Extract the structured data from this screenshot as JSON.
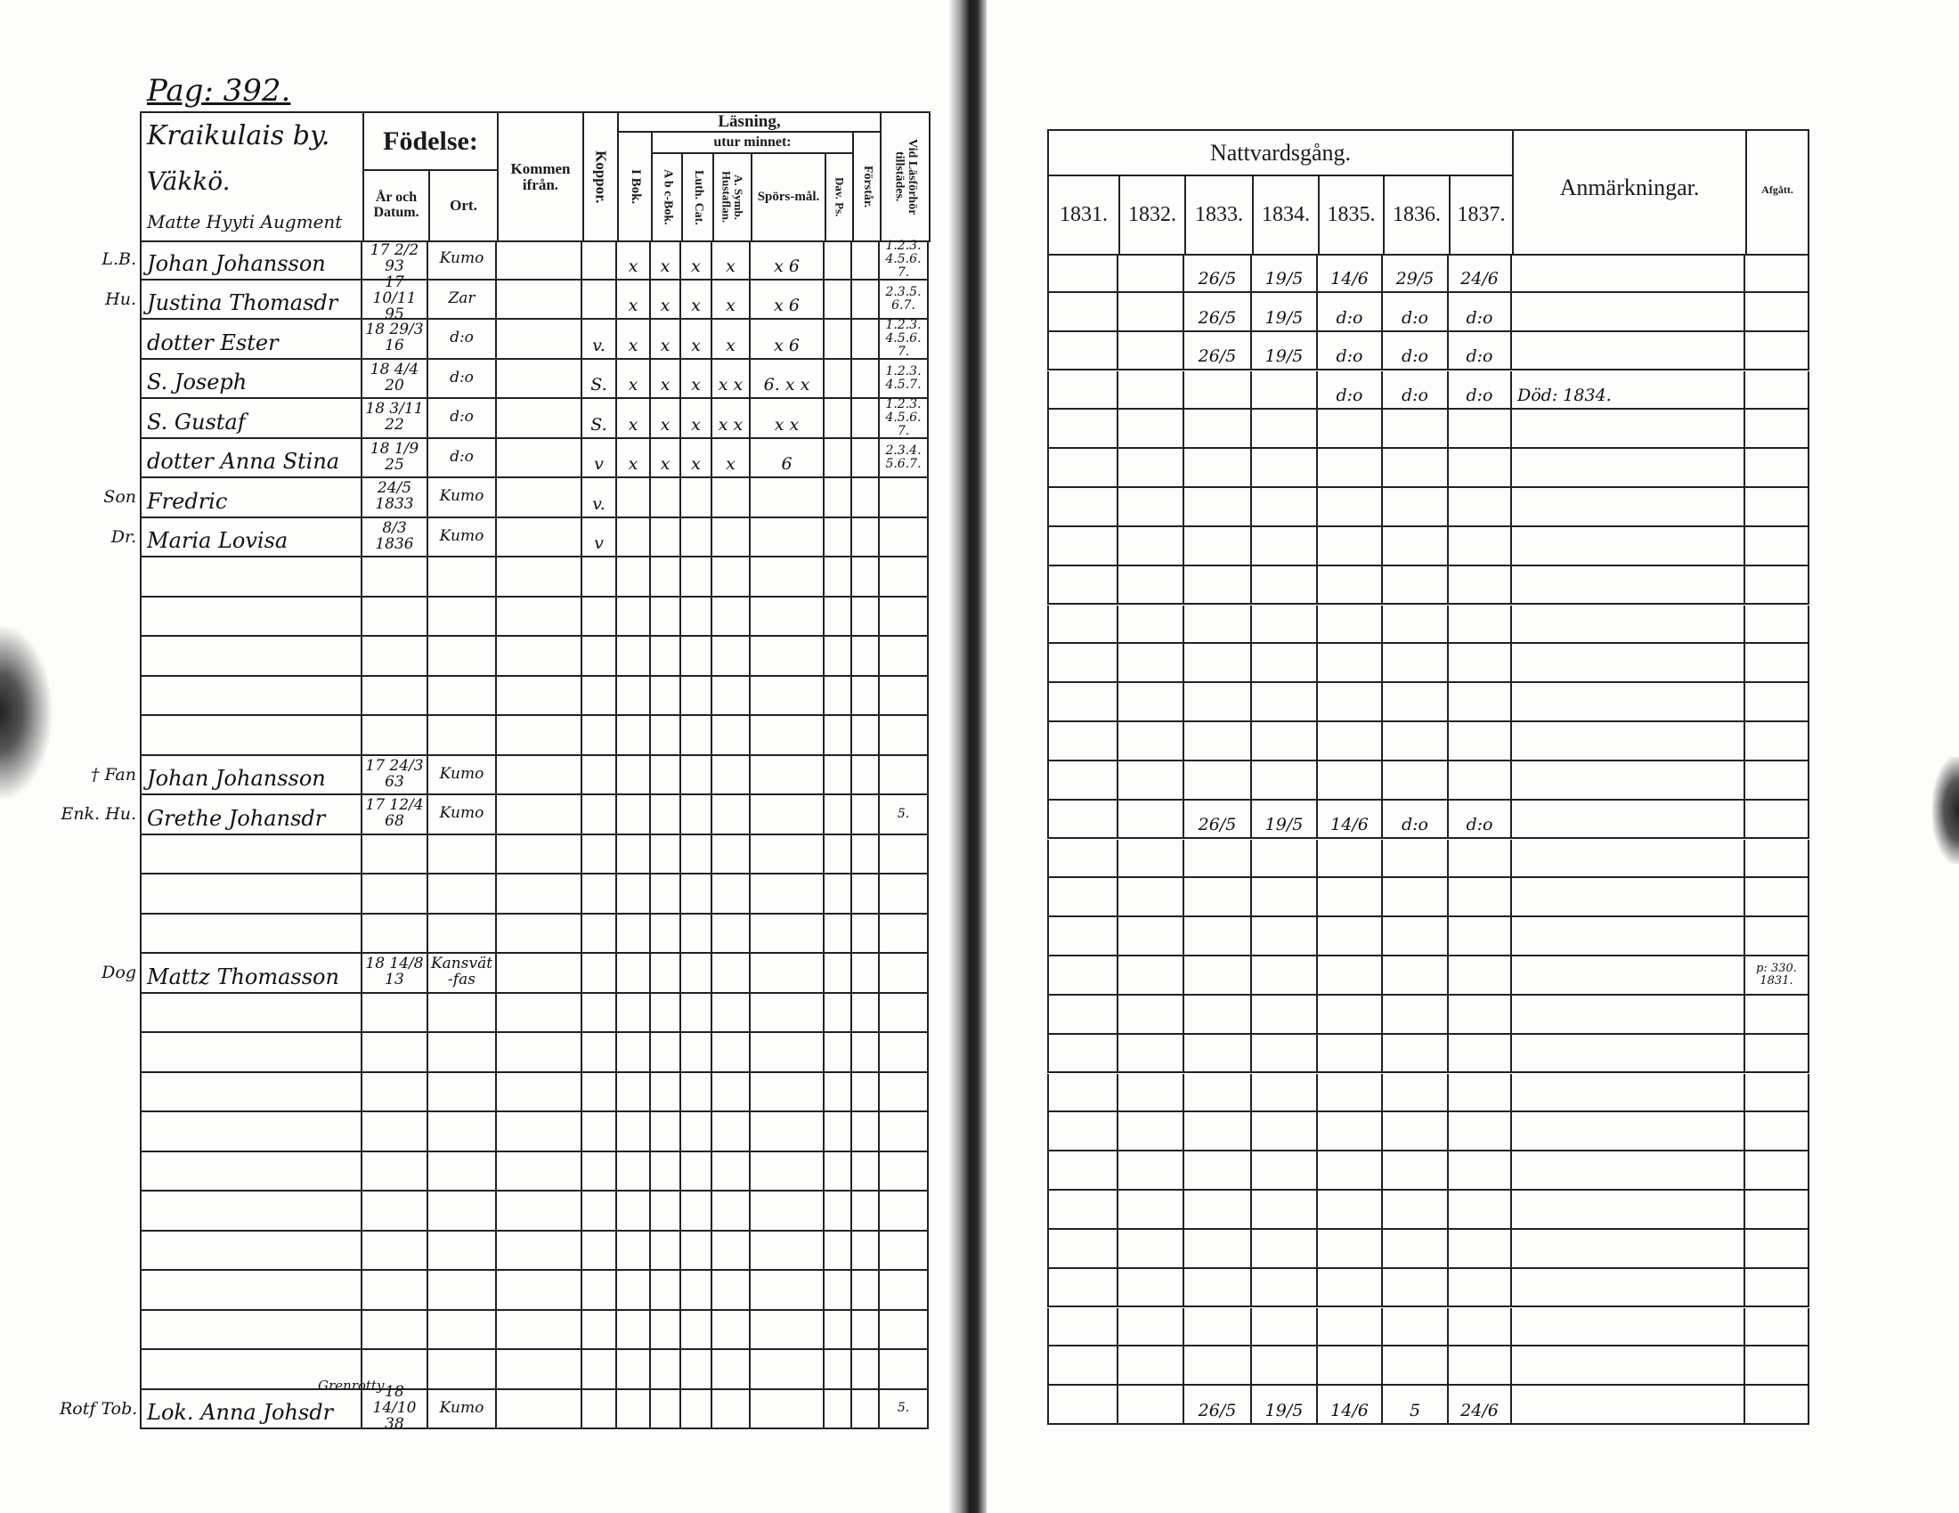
{
  "left_page": {
    "page_number": "Pag: 392.",
    "household_heading": [
      "Kraikulais by.",
      "Väkkö.",
      "Matte Hyyti Augment"
    ],
    "headers": {
      "fodelse": "Födelse:",
      "ar_och_datum": "År och Datum.",
      "ort": "Ort.",
      "kommen_ifran": "Kommen ifrån.",
      "koppor": "Koppor.",
      "lasning": "Läsning,",
      "utur_minnet": "utur minnet:",
      "i_bok": "I Bok.",
      "abc_bok": "A b c-Bok.",
      "luth_cat": "Luth. Cat.",
      "symb": "A. Symb. Hustaflan.",
      "sporsmal": "Spörs-mål.",
      "dav_ps": "Dav. Ps.",
      "forstar": "Förstår.",
      "vid_lasforhor": "Vid Läsförhör tillstädes."
    },
    "rows": [
      {
        "row": 0,
        "prefix": "L.B.",
        "name": "Johan Johansson",
        "date": "17 2/2 93",
        "ort": "Kumo",
        "koppor": "",
        "i_bok": "x",
        "abc": "x",
        "luth": "x",
        "symb": "x",
        "spors": "x 6",
        "vid": "1.2.3.4.5.6.7."
      },
      {
        "row": 1,
        "prefix": "Hu.",
        "name": "Justina Thomasdr",
        "date": "17 10/11 95",
        "ort": "Zar",
        "koppor": "",
        "i_bok": "x",
        "abc": "x",
        "luth": "x",
        "symb": "x",
        "spors": "x 6",
        "vid": "2.3.5.6.7."
      },
      {
        "row": 2,
        "prefix": "",
        "name": "dotter Ester",
        "date": "18 29/3 16",
        "ort": "d:o",
        "koppor": "v.",
        "i_bok": "x",
        "abc": "x",
        "luth": "x",
        "symb": "x",
        "spors": "x 6",
        "vid": "1.2.3.4.5.6.7."
      },
      {
        "row": 3,
        "prefix": "",
        "name": "S. Joseph",
        "date": "18 4/4 20",
        "ort": "d:o",
        "koppor": "S.",
        "i_bok": "x",
        "abc": "x",
        "luth": "x",
        "symb": "x x",
        "spors": "6. x x",
        "vid": "1.2.3.4.5.7."
      },
      {
        "row": 4,
        "prefix": "",
        "name": "S. Gustaf",
        "date": "18 3/11 22",
        "ort": "d:o",
        "koppor": "S.",
        "i_bok": "x",
        "abc": "x",
        "luth": "x",
        "symb": "x x",
        "spors": "x x",
        "vid": "1.2.3.4.5.6.7."
      },
      {
        "row": 5,
        "prefix": "",
        "name": "dotter Anna Stina",
        "date": "18 1/9 25",
        "ort": "d:o",
        "koppor": "v",
        "i_bok": "x",
        "abc": "x",
        "luth": "x",
        "symb": "x",
        "spors": "6",
        "vid": "2.3.4.5.6.7."
      },
      {
        "row": 6,
        "prefix": "Son",
        "name": "Fredric",
        "date": "24/5 1833",
        "ort": "Kumo",
        "koppor": "v.",
        "i_bok": "",
        "abc": "",
        "luth": "",
        "symb": "",
        "spors": "",
        "vid": ""
      },
      {
        "row": 7,
        "prefix": "Dr.",
        "name": "Maria Lovisa",
        "date": "8/3 1836",
        "ort": "Kumo",
        "koppor": "v",
        "i_bok": "",
        "abc": "",
        "luth": "",
        "symb": "",
        "spors": "",
        "vid": ""
      },
      {
        "row": 13,
        "prefix": "† Fan",
        "name": "Johan Johansson",
        "date": "17 24/3 63",
        "ort": "Kumo",
        "koppor": "",
        "i_bok": "",
        "abc": "",
        "luth": "",
        "symb": "",
        "spors": "",
        "vid": ""
      },
      {
        "row": 14,
        "prefix": "Enk. Hu.",
        "name": "Grethe Johansdr",
        "date": "17 12/4 68",
        "ort": "Kumo",
        "koppor": "",
        "i_bok": "",
        "abc": "",
        "luth": "",
        "symb": "",
        "spors": "",
        "vid": "5."
      },
      {
        "row": 18,
        "prefix": "Dog",
        "name": "Mattz Thomasson",
        "date": "18 14/8 13",
        "ort": "Kansvät-fas",
        "koppor": "",
        "i_bok": "",
        "abc": "",
        "luth": "",
        "symb": "",
        "spors": "",
        "vid": ""
      },
      {
        "row": 29,
        "prefix": "Rotf Tob.",
        "name": "Lok. Anna Johsdr",
        "above": "Grenrotty",
        "date": "18 14/10 38",
        "ort": "Kumo",
        "koppor": "",
        "i_bok": "",
        "abc": "",
        "luth": "",
        "symb": "",
        "spors": "",
        "vid": "5."
      }
    ]
  },
  "right_page": {
    "headers": {
      "nattvardsgang": "Nattvardsgång.",
      "years": [
        "1831.",
        "1832.",
        "1833.",
        "1834.",
        "1835.",
        "1836.",
        "1837."
      ],
      "anmarkningar": "Anmärkningar.",
      "afgatt": "Afgått."
    },
    "rows": [
      {
        "row": 0,
        "years": [
          "",
          "",
          "26/5",
          "19/5",
          "14/6",
          "29/5",
          "24/6"
        ],
        "anm": "",
        "afgatt": ""
      },
      {
        "row": 1,
        "years": [
          "",
          "",
          "26/5",
          "19/5",
          "d:o",
          "d:o",
          "d:o"
        ],
        "anm": "",
        "afgatt": ""
      },
      {
        "row": 2,
        "years": [
          "",
          "",
          "26/5",
          "19/5",
          "d:o",
          "d:o",
          "d:o"
        ],
        "anm": "",
        "afgatt": ""
      },
      {
        "row": 3,
        "years": [
          "",
          "",
          "",
          "",
          "d:o",
          "d:o",
          "d:o"
        ],
        "anm": "Död: 1834.",
        "afgatt": ""
      },
      {
        "row": 14,
        "years": [
          "",
          "",
          "26/5",
          "19/5",
          "14/6",
          "d:o",
          "d:o"
        ],
        "anm": "",
        "afgatt": ""
      },
      {
        "row": 18,
        "years": [
          "",
          "",
          "",
          "",
          "",
          "",
          ""
        ],
        "anm": "",
        "afgatt": "p: 330. 1831."
      },
      {
        "row": 29,
        "years": [
          "",
          "",
          "26/5",
          "19/5",
          "14/6",
          "5",
          "24/6"
        ],
        "anm": "",
        "afgatt": ""
      }
    ]
  }
}
